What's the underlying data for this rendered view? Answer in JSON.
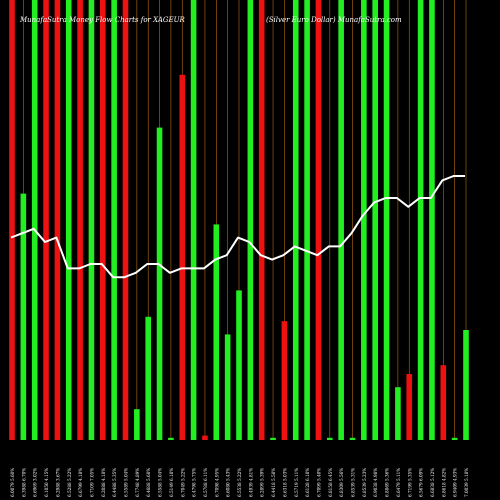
{
  "chart_data": {
    "type": "bar",
    "title_left": "MunafaSutra Money Flow Charts for XAGEUR",
    "title_right": "(Silver Euro Dollar) MunafaSutra.com",
    "colors": {
      "background": "#000000",
      "up": "#22ee22",
      "down": "#ee1111",
      "line": "#ffffff",
      "grid": "#b86a12"
    },
    "categories": [
      "6.0079 5.60%",
      "6.3988 6.70%",
      "6.6969 3.02%",
      "6.1050 4.15%",
      "6.2988 3.67%",
      "6.5288 5.22%",
      "6.6799 4.18%",
      "6.7109 7.05%",
      "6.2088 4.18%",
      "6.4488 5.35%",
      "6.5589 5.04%",
      "6.7748 4.89%",
      "6.4688 5.68%",
      "6.5588 5.04%",
      "6.5149 6.18%",
      "6.7049 5.22%",
      "6.4798 5.75%",
      "6.5788 6.11%",
      "6.7098 4.95%",
      "6.6080 5.43%",
      "6.5538 5.22%",
      "6.4939 4.81%",
      "6.2899 5.39%",
      "6.4418 5.58%",
      "6.6318 5.03%",
      "6.5719 5.11%",
      "6.6128 6.18%",
      "6.7099 5.40%",
      "6.8158 6.45%",
      "6.8309 5.56%",
      "6.8539 5.31%",
      "6.8539 5.23%",
      "6.9038 4.98%",
      "6.8869 5.36%",
      "6.6479 5.11%",
      "6.7199 5.35%",
      "6.5679 6.09%",
      "6.6838 5.12%",
      "6.8618 4.82%",
      "6.9409 4.93%",
      "7.0039 5.18%"
    ],
    "values": [
      100,
      56,
      100,
      100,
      100,
      100,
      100,
      100,
      100,
      100,
      100,
      7,
      28,
      71,
      0.5,
      83,
      100,
      1,
      49,
      24,
      34,
      100,
      100,
      0.5,
      27,
      100,
      100,
      100,
      0.5,
      100,
      0.5,
      100,
      100,
      100,
      12,
      15,
      100,
      100,
      17,
      0.5,
      25
    ],
    "directions": [
      "down",
      "up",
      "up",
      "down",
      "down",
      "up",
      "down",
      "up",
      "down",
      "up",
      "down",
      "up",
      "up",
      "up",
      "up",
      "down",
      "up",
      "down",
      "up",
      "up",
      "up",
      "up",
      "down",
      "up",
      "down",
      "up",
      "up",
      "down",
      "up",
      "up",
      "up",
      "up",
      "up",
      "up",
      "up",
      "down",
      "up",
      "up",
      "down",
      "up",
      "up"
    ],
    "line": [
      46,
      47,
      48,
      45,
      46,
      39,
      39,
      40,
      40,
      37,
      37,
      38,
      40,
      40,
      38,
      39,
      39,
      39,
      41,
      42,
      46,
      45,
      42,
      41,
      42,
      44,
      43,
      42,
      44,
      44,
      47,
      51,
      54,
      55,
      55,
      53,
      55,
      55,
      59,
      60,
      60
    ],
    "ylim": [
      0,
      100
    ],
    "grid": true
  }
}
